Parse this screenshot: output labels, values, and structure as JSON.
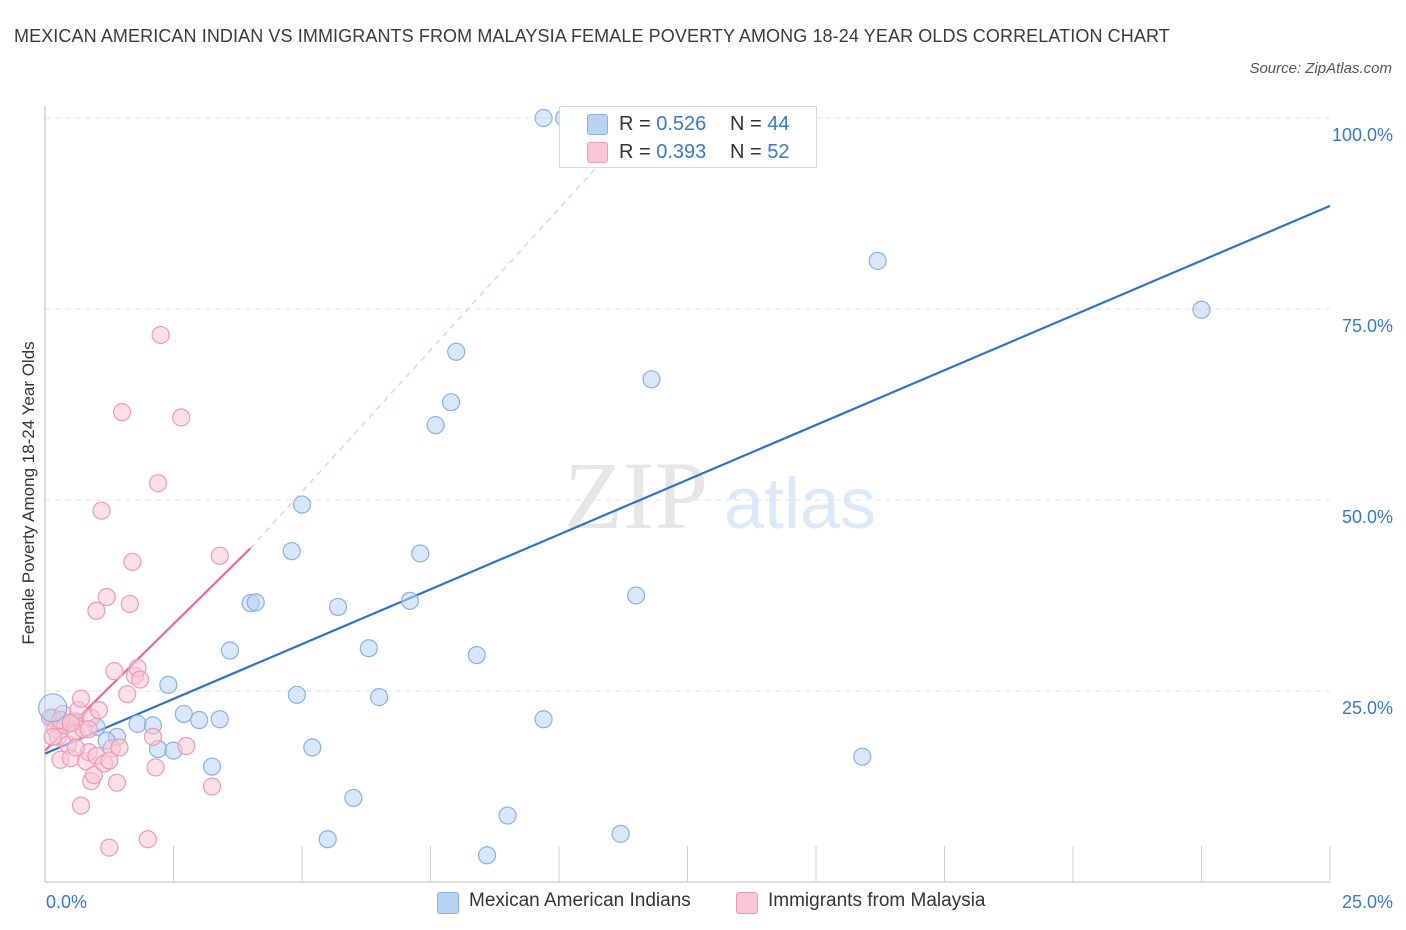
{
  "title": "MEXICAN AMERICAN INDIAN VS IMMIGRANTS FROM MALAYSIA FEMALE POVERTY AMONG 18-24 YEAR OLDS CORRELATION CHART",
  "source": "Source: ZipAtlas.com",
  "watermark": {
    "zip": "ZIP",
    "atlas": "atlas"
  },
  "colors": {
    "blue_fill": "#b8d3f4",
    "blue_stroke": "#8ab1e3",
    "blue_line": "#2f72c9",
    "pink_fill": "#f8c6d6",
    "pink_stroke": "#ee9ab5",
    "pink_line": "#e8689a",
    "tick_text": "#3a78c6",
    "grid": "#e3e3e3"
  },
  "legend_top": [
    {
      "r_label": "R = ",
      "r_value": "0.526",
      "n_label": "N = ",
      "n_value": "44"
    },
    {
      "r_label": "R = ",
      "r_value": "0.393",
      "n_label": "N = ",
      "n_value": "52"
    }
  ],
  "legend_bottom": [
    "Mexican American Indians",
    "Immigrants from Malaysia"
  ],
  "chart_data": {
    "type": "scatter",
    "xlabel": "",
    "ylabel": "Female Poverty Among 18-24 Year Olds",
    "xlim": [
      0,
      25
    ],
    "ylim": [
      0,
      100
    ],
    "x_tick_labels": [
      {
        "value": 0,
        "label": "0.0%"
      },
      {
        "value": 25,
        "label": "25.0%"
      }
    ],
    "y_tick_labels": [
      {
        "value": 25,
        "label": "25.0%"
      },
      {
        "value": 50,
        "label": "50.0%"
      },
      {
        "value": 75,
        "label": "75.0%"
      },
      {
        "value": 100,
        "label": "100.0%"
      }
    ],
    "series": [
      {
        "name": "Mexican American Indians",
        "color": "#b8d3f4",
        "points": [
          [
            0.15,
            21.5
          ],
          [
            1.0,
            20.3
          ],
          [
            1.4,
            19.0
          ],
          [
            1.8,
            20.7
          ],
          [
            2.1,
            20.5
          ],
          [
            2.2,
            17.4
          ],
          [
            2.5,
            17.2
          ],
          [
            2.4,
            25.8
          ],
          [
            2.7,
            22.0
          ],
          [
            3.0,
            21.2
          ],
          [
            3.25,
            15.1
          ],
          [
            3.4,
            21.3
          ],
          [
            3.6,
            30.3
          ],
          [
            4.0,
            36.5
          ],
          [
            4.1,
            36.6
          ],
          [
            4.8,
            43.3
          ],
          [
            4.9,
            24.5
          ],
          [
            5.0,
            49.4
          ],
          [
            5.2,
            17.6
          ],
          [
            5.5,
            5.6
          ],
          [
            5.7,
            36.0
          ],
          [
            6.0,
            11.0
          ],
          [
            6.3,
            30.6
          ],
          [
            6.5,
            24.2
          ],
          [
            7.1,
            36.8
          ],
          [
            7.3,
            43.0
          ],
          [
            7.6,
            59.8
          ],
          [
            7.9,
            62.8
          ],
          [
            8.0,
            69.4
          ],
          [
            8.4,
            29.7
          ],
          [
            8.6,
            3.5
          ],
          [
            9.0,
            8.7
          ],
          [
            9.7,
            21.3
          ],
          [
            9.7,
            100.0
          ],
          [
            10.1,
            100.0
          ],
          [
            11.2,
            6.3
          ],
          [
            11.5,
            37.5
          ],
          [
            11.8,
            65.8
          ],
          [
            15.9,
            16.4
          ],
          [
            16.2,
            81.3
          ],
          [
            22.5,
            74.9
          ],
          [
            0.3,
            20.5
          ],
          [
            1.2,
            18.5
          ],
          [
            0.6,
            21.0
          ]
        ]
      },
      {
        "name": "Immigrants from Malaysia",
        "color": "#f8c6d6",
        "points": [
          [
            0.1,
            21.5
          ],
          [
            0.2,
            20.0
          ],
          [
            0.25,
            19.0
          ],
          [
            0.3,
            16.0
          ],
          [
            0.35,
            22.0
          ],
          [
            0.4,
            20.5
          ],
          [
            0.45,
            18.0
          ],
          [
            0.5,
            16.2
          ],
          [
            0.55,
            21.0
          ],
          [
            0.6,
            19.5
          ],
          [
            0.65,
            22.5
          ],
          [
            0.7,
            10.0
          ],
          [
            0.7,
            24.0
          ],
          [
            0.75,
            20.0
          ],
          [
            0.8,
            15.8
          ],
          [
            0.85,
            17.0
          ],
          [
            0.9,
            13.2
          ],
          [
            0.9,
            21.5
          ],
          [
            0.95,
            14.0
          ],
          [
            1.0,
            16.5
          ],
          [
            1.0,
            35.5
          ],
          [
            1.05,
            22.5
          ],
          [
            1.1,
            48.6
          ],
          [
            1.15,
            15.5
          ],
          [
            1.2,
            37.3
          ],
          [
            1.25,
            4.5
          ],
          [
            1.3,
            17.5
          ],
          [
            1.35,
            27.6
          ],
          [
            1.4,
            13.0
          ],
          [
            1.5,
            61.5
          ],
          [
            1.6,
            24.6
          ],
          [
            1.65,
            36.4
          ],
          [
            1.7,
            41.9
          ],
          [
            1.75,
            27.0
          ],
          [
            1.8,
            28.0
          ],
          [
            1.85,
            26.5
          ],
          [
            2.0,
            5.6
          ],
          [
            2.15,
            15.0
          ],
          [
            2.1,
            19.0
          ],
          [
            2.2,
            52.2
          ],
          [
            2.25,
            71.6
          ],
          [
            2.65,
            60.8
          ],
          [
            2.75,
            17.8
          ],
          [
            3.25,
            12.5
          ],
          [
            3.4,
            42.7
          ],
          [
            0.15,
            19.0
          ],
          [
            0.3,
            21.2
          ],
          [
            0.5,
            20.8
          ],
          [
            0.6,
            17.6
          ],
          [
            1.45,
            17.6
          ],
          [
            0.85,
            20.0
          ],
          [
            1.25,
            15.9
          ]
        ]
      }
    ],
    "trendlines": [
      {
        "series": "Mexican American Indians",
        "from": [
          0,
          16.8
        ],
        "to": [
          25,
          88.5
        ],
        "style": "solid"
      },
      {
        "series": "Immigrants from Malaysia",
        "from": [
          0,
          17.2
        ],
        "to": [
          4,
          43.7
        ],
        "style": "solid"
      },
      {
        "series": "Immigrants from Malaysia",
        "from": [
          4,
          43.7
        ],
        "to": [
          11.6,
          100.0
        ],
        "style": "dashed"
      }
    ]
  }
}
